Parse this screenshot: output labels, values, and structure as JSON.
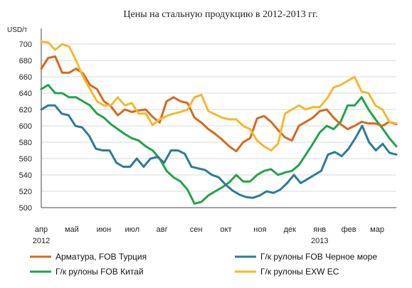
{
  "chart_data": {
    "type": "line",
    "title": "Цены на стальную продукцию в 2012-2013 гг.",
    "ylabel": "USD/т",
    "ylim": [
      500,
      700
    ],
    "yticks": [
      500,
      520,
      540,
      560,
      580,
      600,
      620,
      640,
      660,
      680,
      700
    ],
    "grid": true,
    "legend_position": "bottom",
    "x_range": [
      0,
      50
    ],
    "x_labels": [
      {
        "x": 0,
        "label": "апр"
      },
      {
        "x": 4.3,
        "label": "май"
      },
      {
        "x": 8.8,
        "label": "июн"
      },
      {
        "x": 12.8,
        "label": "июл"
      },
      {
        "x": 17.0,
        "label": "авг"
      },
      {
        "x": 21.8,
        "label": "сен"
      },
      {
        "x": 26.0,
        "label": "окт"
      },
      {
        "x": 30.8,
        "label": "ноя"
      },
      {
        "x": 35.0,
        "label": "дек"
      },
      {
        "x": 39.2,
        "label": "янв"
      },
      {
        "x": 43.3,
        "label": "фев"
      },
      {
        "x": 47.3,
        "label": "мар"
      }
    ],
    "x_year_labels": [
      {
        "x": 0,
        "label": "2012"
      },
      {
        "x": 39.2,
        "label": "2013"
      }
    ],
    "series": [
      {
        "name": "Арматура, FOB Турция",
        "color": "#d46a1e",
        "values": [
          670,
          683,
          685,
          665,
          665,
          670,
          664,
          650,
          645,
          630,
          624,
          613,
          620,
          617,
          619,
          620,
          611,
          604,
          630,
          635,
          630,
          628,
          610,
          604,
          596,
          590,
          583,
          575,
          569,
          580,
          585,
          609,
          612,
          605,
          595,
          586,
          582,
          600,
          605,
          610,
          618,
          620,
          610,
          602,
          596,
          600,
          605,
          603,
          603,
          600,
          605,
          602
        ]
      },
      {
        "name": "Г/к рулоны FOB Черное море",
        "color": "#2e7b96",
        "values": [
          620,
          625,
          625,
          615,
          613,
          600,
          598,
          588,
          572,
          570,
          570,
          555,
          550,
          550,
          560,
          550,
          560,
          562,
          555,
          570,
          570,
          566,
          550,
          548,
          546,
          540,
          537,
          528,
          521,
          516,
          513,
          512,
          515,
          520,
          518,
          522,
          530,
          540,
          530,
          535,
          540,
          545,
          565,
          568,
          563,
          572,
          585,
          600,
          580,
          570,
          578,
          567,
          565
        ]
      },
      {
        "name": "Г/к рулоны FOB Китай",
        "color": "#22a34a",
        "values": [
          645,
          650,
          640,
          640,
          635,
          635,
          630,
          625,
          615,
          610,
          602,
          596,
          590,
          585,
          582,
          575,
          570,
          560,
          545,
          537,
          532,
          522,
          505,
          507,
          515,
          520,
          525,
          531,
          540,
          532,
          532,
          540,
          545,
          547,
          540,
          543,
          545,
          552,
          565,
          578,
          592,
          600,
          596,
          605,
          625,
          625,
          635,
          620,
          608,
          597,
          585,
          575
        ]
      },
      {
        "name": "Г/к рулоны EXW ЕС",
        "color": "#f5b82e",
        "values": [
          703,
          702,
          693,
          700,
          697,
          680,
          660,
          645,
          630,
          625,
          625,
          635,
          625,
          628,
          615,
          615,
          601,
          608,
          612,
          615,
          617,
          620,
          635,
          638,
          618,
          614,
          610,
          608,
          608,
          600,
          596,
          582,
          575,
          570,
          578,
          615,
          620,
          625,
          620,
          623,
          623,
          633,
          647,
          650,
          655,
          660,
          642,
          640,
          625,
          620,
          605,
          603
        ]
      }
    ]
  }
}
